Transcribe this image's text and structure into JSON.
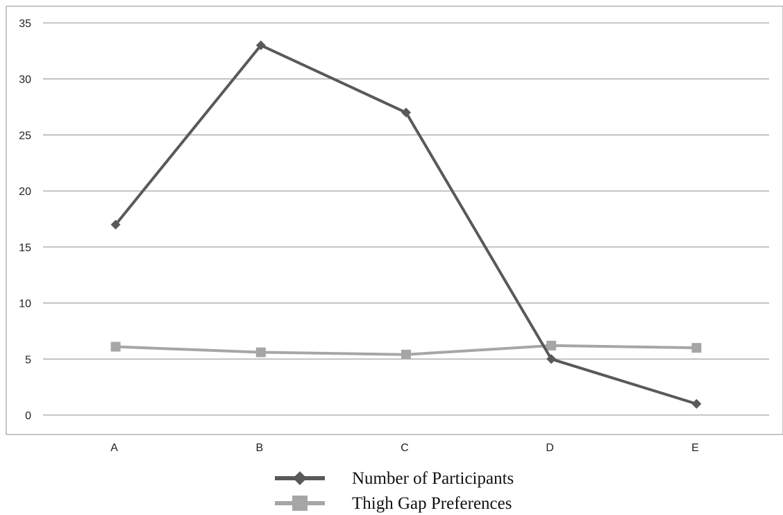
{
  "chart_data": {
    "type": "line",
    "categories": [
      "A",
      "B",
      "C",
      "D",
      "E"
    ],
    "series": [
      {
        "name": "Number of Participants",
        "values": [
          17,
          33,
          27,
          5,
          1
        ],
        "color": "#595959",
        "marker": "diamond"
      },
      {
        "name": "Thigh Gap Preferences",
        "values": [
          6.1,
          5.6,
          5.4,
          6.2,
          6.0
        ],
        "color": "#a6a6a6",
        "marker": "square"
      }
    ],
    "ylim": [
      0,
      35
    ],
    "yticks": [
      0,
      5,
      10,
      15,
      20,
      25,
      30,
      35
    ],
    "grid": "horizontal",
    "legend": "bottom-center"
  }
}
